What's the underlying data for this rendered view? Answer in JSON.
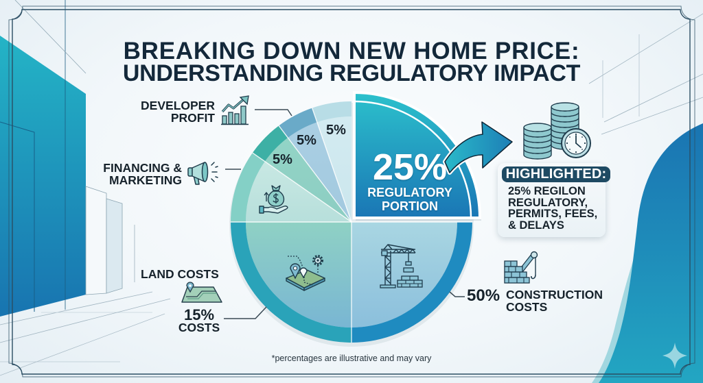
{
  "title": {
    "line1": "BREAKING DOWN NEW HOME PRICE:",
    "line2": "UNDERSTANDING REGULATORY IMPACT"
  },
  "callouts": {
    "developer_profit": {
      "line1": "DEVELOPER",
      "line2": "PROFIT",
      "icon": "chart-growth-icon"
    },
    "financing_marketing": {
      "line1": "FINANCING &",
      "line2": "MARKETING",
      "icon": "megaphone-icon"
    },
    "land_costs": {
      "title": "LAND COSTS",
      "line2": "COSTS",
      "icon": "map-icon"
    },
    "construction_costs": {
      "line1": "CONSTRUCTION",
      "line2": "COSTS",
      "icon": "brick-wall-crane-icon"
    },
    "regulatory": {
      "line1": "REGULATORY",
      "line2": "PORTION"
    }
  },
  "pie_icons": [
    "money-bag-hand-icon",
    "land-pin-map-icon",
    "construction-crane-icon"
  ],
  "highlight": {
    "badge": "HIGHLIGHTED:",
    "lines": [
      "25% REGILON",
      "REGULATORY,",
      "PERMITS, FEES,",
      "& DELAYS"
    ],
    "icon": "coins-clock-icon",
    "pointer_icon": "curved-arrow-icon"
  },
  "footnote": "*percentages are illustrative and may vary",
  "colors": {
    "title": "#13283a",
    "text": "#16222b",
    "accent_teal": "#2cc1cc",
    "accent_blue": "#1a76b5",
    "badge_bg": "#1e4a63",
    "leader_line": "#3a4a55",
    "background": "#f2f7fa"
  },
  "chart_data": {
    "type": "pie",
    "title": "Breaking Down New Home Price: Understanding Regulatory Impact",
    "categories": [
      "Regulatory Portion",
      "Construction Costs",
      "Land Costs",
      "Financing & Marketing",
      "5% slice",
      "Developer Profit",
      "5% slice"
    ],
    "values": [
      25,
      50,
      15,
      null,
      5,
      5,
      5
    ],
    "annotation": "*percentages are illustrative and may vary",
    "legend": "none (callout labels with leader lines)",
    "slices": [
      {
        "name": "Regulatory Portion",
        "label": "25%",
        "value": 25,
        "start_deg": 0,
        "end_deg": 90,
        "highlighted": true,
        "fill_top": "#2cc1cc",
        "fill_bottom": "#1a76b5",
        "ring": "#2cc1cc"
      },
      {
        "name": "Construction Costs",
        "label": "50%",
        "value": 50,
        "start_deg": 90,
        "end_deg": 180,
        "fill_top": "#a9d6e2",
        "fill_bottom": "#8bbfdc",
        "ring": "#1f8bc0"
      },
      {
        "name": "Land Costs",
        "label": "15%",
        "value": 15,
        "start_deg": 180,
        "end_deg": 270,
        "fill_top": "#8fd1c4",
        "fill_bottom": "#79b6d3",
        "ring": "#2aa3b9"
      },
      {
        "name": "Financing & Marketing",
        "label": "",
        "value": null,
        "start_deg": 270,
        "end_deg": 305,
        "fill_top": "#c8e8e3",
        "fill_bottom": "#b7dfdb",
        "ring": "#84d0c6"
      },
      {
        "name": "5% slice",
        "label": "5%",
        "value": 5,
        "start_deg": 305,
        "end_deg": 323,
        "fill_top": "#93d4c6",
        "fill_bottom": "#8ccdc2",
        "ring": "#3db0a5"
      },
      {
        "name": "Developer Profit",
        "label": "5%",
        "value": 5,
        "start_deg": 323,
        "end_deg": 341,
        "fill_top": "#aacfe3",
        "fill_bottom": "#a2c9df",
        "ring": "#6aaac8"
      },
      {
        "name": "5% slice",
        "label": "5%",
        "value": 5,
        "start_deg": 341,
        "end_deg": 360,
        "fill_top": "#d3ebf1",
        "fill_bottom": "#cbe6ed",
        "ring": "#b8dde6"
      }
    ]
  }
}
